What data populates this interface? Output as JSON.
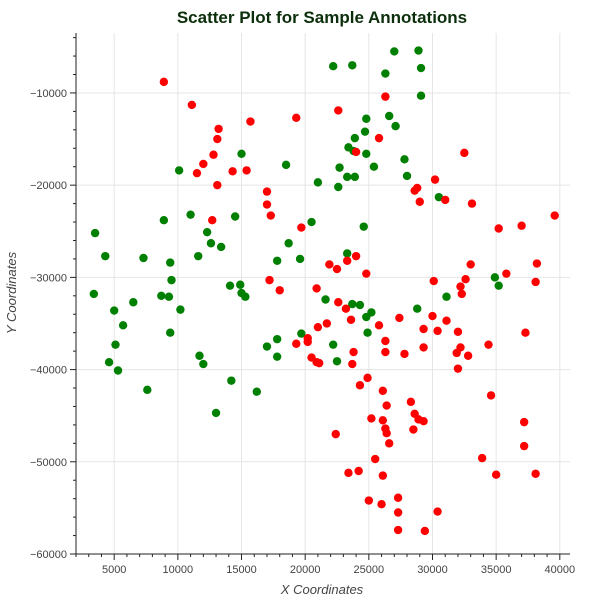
{
  "chart_data": {
    "type": "scatter",
    "title": "Scatter Plot for Sample Annotations",
    "xlabel": "X Coordinates",
    "ylabel": "Y Coordinates",
    "xlim": [
      2000,
      40800
    ],
    "ylim": [
      -60000,
      -3500
    ],
    "xticks": [
      5000,
      10000,
      15000,
      20000,
      25000,
      30000,
      35000,
      40000
    ],
    "xtick_labels": [
      "5000",
      "10000",
      "15000",
      "20000",
      "25000",
      "30000",
      "35000",
      "40000"
    ],
    "yticks": [
      -60000,
      -50000,
      -40000,
      -30000,
      -20000,
      -10000
    ],
    "ytick_labels": [
      "−60000",
      "−50000",
      "−40000",
      "−30000",
      "−20000",
      "−10000"
    ],
    "grid": true,
    "series": [
      {
        "color": "#008000",
        "points": [
          [
            22200,
            -7100
          ],
          [
            23700,
            -7000
          ],
          [
            26300,
            -7900
          ],
          [
            27000,
            -5500
          ],
          [
            28900,
            -5400
          ],
          [
            29100,
            -7300
          ],
          [
            29100,
            -10300
          ],
          [
            24800,
            -12800
          ],
          [
            24700,
            -14200
          ],
          [
            23900,
            -14900
          ],
          [
            23400,
            -15900
          ],
          [
            26600,
            -12500
          ],
          [
            27100,
            -13600
          ],
          [
            27800,
            -17200
          ],
          [
            28000,
            -19000
          ],
          [
            25400,
            -18000
          ],
          [
            24800,
            -16600
          ],
          [
            23800,
            -16300
          ],
          [
            22700,
            -18100
          ],
          [
            23300,
            -19100
          ],
          [
            23900,
            -19100
          ],
          [
            22600,
            -20200
          ],
          [
            21000,
            -19700
          ],
          [
            20500,
            -24000
          ],
          [
            24600,
            -24500
          ],
          [
            30500,
            -21300
          ],
          [
            15000,
            -16600
          ],
          [
            18500,
            -17800
          ],
          [
            10100,
            -18400
          ],
          [
            11000,
            -23200
          ],
          [
            12300,
            -25100
          ],
          [
            12600,
            -26300
          ],
          [
            13400,
            -26700
          ],
          [
            11600,
            -27700
          ],
          [
            9400,
            -28400
          ],
          [
            8900,
            -23800
          ],
          [
            14500,
            -23400
          ],
          [
            14100,
            -30900
          ],
          [
            14900,
            -30800
          ],
          [
            15000,
            -31700
          ],
          [
            15300,
            -32100
          ],
          [
            3500,
            -25200
          ],
          [
            4300,
            -27700
          ],
          [
            7300,
            -27900
          ],
          [
            3400,
            -31800
          ],
          [
            5000,
            -33600
          ],
          [
            5700,
            -35200
          ],
          [
            6500,
            -32700
          ],
          [
            8700,
            -32000
          ],
          [
            9300,
            -32100
          ],
          [
            9500,
            -30300
          ],
          [
            10200,
            -33500
          ],
          [
            9400,
            -36000
          ],
          [
            5100,
            -37300
          ],
          [
            4600,
            -39200
          ],
          [
            5300,
            -40100
          ],
          [
            7600,
            -42200
          ],
          [
            11700,
            -38500
          ],
          [
            12000,
            -39400
          ],
          [
            14200,
            -41200
          ],
          [
            16200,
            -42400
          ],
          [
            13000,
            -44700
          ],
          [
            17000,
            -37500
          ],
          [
            17800,
            -36700
          ],
          [
            17800,
            -28200
          ],
          [
            18700,
            -26300
          ],
          [
            19600,
            -28000
          ],
          [
            17800,
            -38600
          ],
          [
            19700,
            -36100
          ],
          [
            21600,
            -32400
          ],
          [
            22200,
            -37300
          ],
          [
            22500,
            -39100
          ],
          [
            23300,
            -27400
          ],
          [
            23700,
            -32900
          ],
          [
            24300,
            -33000
          ],
          [
            24800,
            -34300
          ],
          [
            25200,
            -33800
          ],
          [
            24900,
            -36000
          ],
          [
            28800,
            -33400
          ],
          [
            31100,
            -32100
          ],
          [
            34900,
            -30000
          ],
          [
            35200,
            -30900
          ]
        ]
      },
      {
        "color": "#ff0000",
        "points": [
          [
            8900,
            -8800
          ],
          [
            11100,
            -11300
          ],
          [
            11500,
            -18700
          ],
          [
            12000,
            -17700
          ],
          [
            12800,
            -16700
          ],
          [
            13100,
            -15000
          ],
          [
            13200,
            -13900
          ],
          [
            13100,
            -20000
          ],
          [
            14300,
            -18500
          ],
          [
            15400,
            -18400
          ],
          [
            15700,
            -13100
          ],
          [
            12700,
            -23800
          ],
          [
            17000,
            -20700
          ],
          [
            17000,
            -22100
          ],
          [
            17300,
            -23300
          ],
          [
            19300,
            -12700
          ],
          [
            19700,
            -24600
          ],
          [
            22600,
            -11900
          ],
          [
            25800,
            -14900
          ],
          [
            26300,
            -10400
          ],
          [
            24000,
            -16400
          ],
          [
            28600,
            -20600
          ],
          [
            28800,
            -20300
          ],
          [
            29000,
            -21800
          ],
          [
            30200,
            -19400
          ],
          [
            31000,
            -21600
          ],
          [
            33100,
            -22000
          ],
          [
            32500,
            -16500
          ],
          [
            30100,
            -30400
          ],
          [
            33000,
            -28600
          ],
          [
            32600,
            -30200
          ],
          [
            32200,
            -31000
          ],
          [
            32300,
            -31800
          ],
          [
            35200,
            -24700
          ],
          [
            37000,
            -24400
          ],
          [
            39600,
            -23300
          ],
          [
            35800,
            -29600
          ],
          [
            38100,
            -30500
          ],
          [
            38200,
            -28500
          ],
          [
            17200,
            -30300
          ],
          [
            18000,
            -31400
          ],
          [
            21900,
            -28600
          ],
          [
            22500,
            -29100
          ],
          [
            23300,
            -28200
          ],
          [
            24000,
            -27700
          ],
          [
            24800,
            -29600
          ],
          [
            22600,
            -32700
          ],
          [
            23200,
            -33400
          ],
          [
            23600,
            -34600
          ],
          [
            21700,
            -35000
          ],
          [
            21000,
            -35400
          ],
          [
            20200,
            -36600
          ],
          [
            19300,
            -37200
          ],
          [
            20200,
            -37000
          ],
          [
            20500,
            -38700
          ],
          [
            20900,
            -39200
          ],
          [
            21100,
            -39300
          ],
          [
            20900,
            -31200
          ],
          [
            23800,
            -38100
          ],
          [
            23700,
            -39400
          ],
          [
            24300,
            -41700
          ],
          [
            24900,
            -40900
          ],
          [
            25800,
            -35200
          ],
          [
            26300,
            -36900
          ],
          [
            26300,
            -38100
          ],
          [
            27400,
            -34400
          ],
          [
            27800,
            -38300
          ],
          [
            29300,
            -35600
          ],
          [
            29300,
            -37600
          ],
          [
            30000,
            -34200
          ],
          [
            30400,
            -35800
          ],
          [
            31100,
            -34700
          ],
          [
            32000,
            -35900
          ],
          [
            31900,
            -38200
          ],
          [
            32200,
            -37600
          ],
          [
            32800,
            -38500
          ],
          [
            32000,
            -39900
          ],
          [
            34400,
            -37300
          ],
          [
            34600,
            -42800
          ],
          [
            37300,
            -36000
          ],
          [
            22400,
            -47000
          ],
          [
            23400,
            -51200
          ],
          [
            24200,
            -51000
          ],
          [
            25200,
            -45300
          ],
          [
            25500,
            -49700
          ],
          [
            26100,
            -42300
          ],
          [
            26400,
            -43900
          ],
          [
            26100,
            -45500
          ],
          [
            26300,
            -46400
          ],
          [
            26400,
            -46900
          ],
          [
            26600,
            -48000
          ],
          [
            26100,
            -51500
          ],
          [
            26000,
            -54600
          ],
          [
            25000,
            -54200
          ],
          [
            27300,
            -53900
          ],
          [
            27300,
            -55500
          ],
          [
            27300,
            -57400
          ],
          [
            28300,
            -43500
          ],
          [
            28600,
            -44800
          ],
          [
            28500,
            -46500
          ],
          [
            28900,
            -45400
          ],
          [
            29300,
            -45600
          ],
          [
            29400,
            -57500
          ],
          [
            30400,
            -55400
          ],
          [
            33900,
            -49600
          ],
          [
            35000,
            -51400
          ],
          [
            37200,
            -45700
          ],
          [
            37200,
            -48300
          ],
          [
            38100,
            -51300
          ]
        ]
      }
    ]
  }
}
